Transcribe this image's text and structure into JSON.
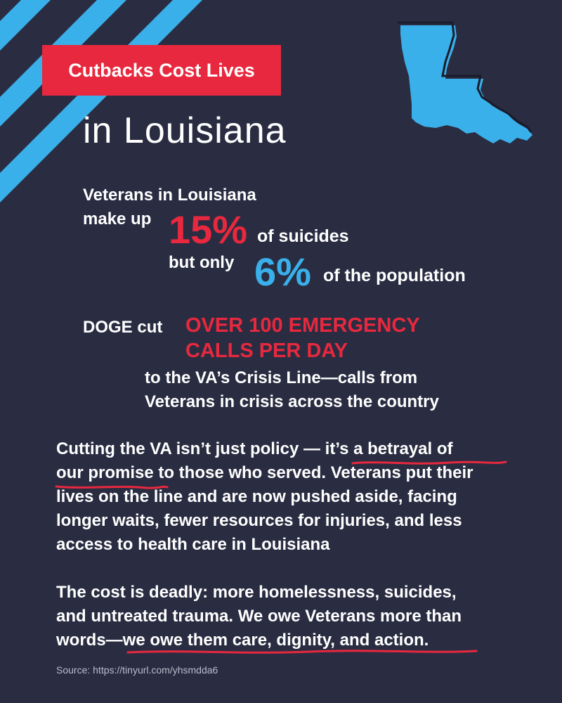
{
  "header": {
    "tag_label": "Cutbacks Cost Lives",
    "state_name": "in Louisiana"
  },
  "map": {
    "icon": "louisiana-map-icon",
    "fill_color": "#3ab0ea",
    "outline_color": "#1a1c2b"
  },
  "stats": {
    "line1": "Veterans in Louisiana",
    "line2_prefix": "make up",
    "suicide_pct": "15%",
    "suicide_suffix": "of suicides",
    "line3_prefix": "but only",
    "population_pct": "6%",
    "population_suffix": "of the population"
  },
  "doge": {
    "prefix": "DOGE cut",
    "highlight_line1": "OVER 100 EMERGENCY",
    "highlight_line2": "CALLS PER DAY",
    "detail_line1": "to the VA’s Crisis Line—calls from",
    "detail_line2": "Veterans in crisis across the country"
  },
  "paragraph1": {
    "line1": "Cutting the VA isn’t just policy — it’s a betrayal of",
    "line2": "our promise to those who served. Veterans put their",
    "line3": "lives on the line and are now pushed aside, facing",
    "line4": "longer waits, fewer resources for injuries, and less",
    "line5": "access to health care in Louisiana"
  },
  "paragraph2": {
    "line1": "The cost is deadly: more homelessness, suicides,",
    "line2": "and untreated trauma. We owe Veterans more than",
    "line3": "words—we owe them care, dignity, and action."
  },
  "source": "Source:  https://tinyurl.com/yhsmdda6",
  "colors": {
    "background": "#2a2d42",
    "accent_red": "#e8283e",
    "accent_blue": "#3ab0ea",
    "text": "#ffffff"
  }
}
